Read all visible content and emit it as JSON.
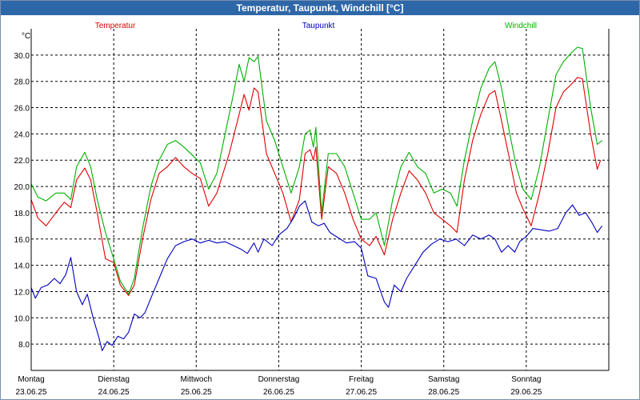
{
  "window": {
    "title": "Temperatur, Taupunkt, Windchill [°C]"
  },
  "chart_data": {
    "type": "line",
    "title": "Temperatur, Taupunkt, Windchill [°C]",
    "ylabel": "°C",
    "ylim": [
      6.0,
      32.0
    ],
    "yticks": [
      "8.0",
      "10.0",
      "12.0",
      "14.0",
      "16.0",
      "18.0",
      "20.0",
      "22.0",
      "24.0",
      "26.0",
      "28.0",
      "30.0"
    ],
    "xlim": [
      0,
      7
    ],
    "days": [
      {
        "name": "Montag",
        "date": "23.06.25"
      },
      {
        "name": "Dienstag",
        "date": "24.06.25"
      },
      {
        "name": "Mittwoch",
        "date": "25.06.25"
      },
      {
        "name": "Donnerstag",
        "date": "26.06.25"
      },
      {
        "name": "Freitag",
        "date": "27.06.25"
      },
      {
        "name": "Samstag",
        "date": "28.06.25"
      },
      {
        "name": "Sonntag",
        "date": "29.06.25"
      }
    ],
    "grid": true,
    "legend": "top",
    "series": [
      {
        "name": "Temperatur",
        "color": "#e00000",
        "points": [
          [
            0.0,
            19.0
          ],
          [
            0.08,
            17.6
          ],
          [
            0.18,
            17.0
          ],
          [
            0.3,
            18.0
          ],
          [
            0.4,
            18.8
          ],
          [
            0.48,
            18.4
          ],
          [
            0.55,
            20.5
          ],
          [
            0.65,
            21.4
          ],
          [
            0.72,
            20.5
          ],
          [
            0.8,
            18.0
          ],
          [
            0.9,
            14.5
          ],
          [
            1.0,
            14.2
          ],
          [
            1.08,
            12.5
          ],
          [
            1.18,
            11.7
          ],
          [
            1.25,
            12.5
          ],
          [
            1.35,
            16.0
          ],
          [
            1.45,
            19.0
          ],
          [
            1.55,
            21.0
          ],
          [
            1.65,
            21.5
          ],
          [
            1.75,
            22.2
          ],
          [
            1.85,
            21.5
          ],
          [
            1.95,
            21.0
          ],
          [
            2.05,
            20.6
          ],
          [
            2.15,
            18.5
          ],
          [
            2.25,
            19.5
          ],
          [
            2.4,
            22.5
          ],
          [
            2.5,
            25.0
          ],
          [
            2.58,
            27.0
          ],
          [
            2.64,
            25.8
          ],
          [
            2.7,
            27.5
          ],
          [
            2.75,
            27.2
          ],
          [
            2.85,
            22.5
          ],
          [
            2.95,
            21.0
          ],
          [
            3.05,
            19.5
          ],
          [
            3.15,
            17.3
          ],
          [
            3.25,
            19.0
          ],
          [
            3.32,
            22.5
          ],
          [
            3.38,
            22.8
          ],
          [
            3.42,
            22.0
          ],
          [
            3.45,
            23.0
          ],
          [
            3.52,
            17.5
          ],
          [
            3.6,
            21.5
          ],
          [
            3.7,
            21.0
          ],
          [
            3.8,
            19.5
          ],
          [
            3.9,
            17.5
          ],
          [
            4.0,
            16.0
          ],
          [
            4.1,
            15.5
          ],
          [
            4.18,
            16.2
          ],
          [
            4.28,
            14.8
          ],
          [
            4.38,
            17.5
          ],
          [
            4.48,
            19.5
          ],
          [
            4.58,
            21.2
          ],
          [
            4.68,
            20.5
          ],
          [
            4.78,
            19.5
          ],
          [
            4.88,
            18.0
          ],
          [
            4.98,
            17.5
          ],
          [
            5.08,
            17.0
          ],
          [
            5.16,
            16.5
          ],
          [
            5.25,
            20.5
          ],
          [
            5.35,
            23.5
          ],
          [
            5.45,
            25.5
          ],
          [
            5.55,
            27.0
          ],
          [
            5.62,
            27.3
          ],
          [
            5.7,
            25.0
          ],
          [
            5.8,
            22.0
          ],
          [
            5.88,
            19.5
          ],
          [
            5.96,
            18.3
          ],
          [
            6.06,
            17.0
          ],
          [
            6.16,
            19.5
          ],
          [
            6.26,
            22.5
          ],
          [
            6.36,
            26.0
          ],
          [
            6.45,
            27.2
          ],
          [
            6.55,
            27.8
          ],
          [
            6.62,
            28.3
          ],
          [
            6.68,
            28.2
          ],
          [
            6.78,
            24.0
          ],
          [
            6.86,
            21.3
          ],
          [
            6.9,
            22.0
          ]
        ]
      },
      {
        "name": "Taupunkt",
        "color": "#0000c0",
        "points": [
          [
            0.0,
            12.3
          ],
          [
            0.05,
            11.5
          ],
          [
            0.12,
            12.3
          ],
          [
            0.2,
            12.5
          ],
          [
            0.28,
            13.0
          ],
          [
            0.35,
            12.6
          ],
          [
            0.42,
            13.3
          ],
          [
            0.48,
            14.6
          ],
          [
            0.55,
            12.0
          ],
          [
            0.62,
            11.0
          ],
          [
            0.68,
            11.8
          ],
          [
            0.75,
            10.0
          ],
          [
            0.82,
            8.5
          ],
          [
            0.86,
            7.5
          ],
          [
            0.92,
            8.2
          ],
          [
            0.98,
            7.9
          ],
          [
            1.05,
            8.6
          ],
          [
            1.12,
            8.4
          ],
          [
            1.18,
            8.9
          ],
          [
            1.25,
            10.3
          ],
          [
            1.32,
            10.0
          ],
          [
            1.38,
            10.4
          ],
          [
            1.45,
            11.5
          ],
          [
            1.55,
            13.0
          ],
          [
            1.65,
            14.5
          ],
          [
            1.75,
            15.5
          ],
          [
            1.85,
            15.8
          ],
          [
            1.95,
            16.0
          ],
          [
            2.05,
            15.7
          ],
          [
            2.15,
            15.9
          ],
          [
            2.25,
            15.7
          ],
          [
            2.35,
            15.8
          ],
          [
            2.45,
            15.5
          ],
          [
            2.55,
            15.2
          ],
          [
            2.62,
            14.9
          ],
          [
            2.7,
            15.7
          ],
          [
            2.75,
            15.0
          ],
          [
            2.82,
            16.0
          ],
          [
            2.92,
            15.5
          ],
          [
            3.0,
            16.3
          ],
          [
            3.1,
            16.8
          ],
          [
            3.18,
            17.6
          ],
          [
            3.25,
            18.5
          ],
          [
            3.32,
            18.9
          ],
          [
            3.4,
            17.3
          ],
          [
            3.48,
            17.0
          ],
          [
            3.55,
            17.2
          ],
          [
            3.62,
            16.5
          ],
          [
            3.72,
            16.1
          ],
          [
            3.82,
            15.7
          ],
          [
            3.92,
            15.8
          ],
          [
            4.0,
            15.3
          ],
          [
            4.08,
            13.2
          ],
          [
            4.18,
            13.0
          ],
          [
            4.28,
            11.2
          ],
          [
            4.33,
            10.8
          ],
          [
            4.4,
            12.5
          ],
          [
            4.48,
            12.0
          ],
          [
            4.55,
            13.0
          ],
          [
            4.65,
            14.0
          ],
          [
            4.75,
            15.0
          ],
          [
            4.85,
            15.6
          ],
          [
            4.95,
            16.0
          ],
          [
            5.05,
            15.8
          ],
          [
            5.15,
            16.0
          ],
          [
            5.25,
            15.5
          ],
          [
            5.35,
            16.3
          ],
          [
            5.45,
            16.0
          ],
          [
            5.55,
            16.3
          ],
          [
            5.62,
            16.0
          ],
          [
            5.7,
            15.0
          ],
          [
            5.78,
            15.5
          ],
          [
            5.86,
            15.0
          ],
          [
            5.92,
            15.8
          ],
          [
            6.0,
            16.2
          ],
          [
            6.08,
            16.8
          ],
          [
            6.18,
            16.7
          ],
          [
            6.28,
            16.6
          ],
          [
            6.38,
            16.8
          ],
          [
            6.48,
            18.0
          ],
          [
            6.56,
            18.6
          ],
          [
            6.64,
            17.8
          ],
          [
            6.72,
            18.0
          ],
          [
            6.8,
            17.2
          ],
          [
            6.86,
            16.5
          ],
          [
            6.92,
            17.0
          ]
        ]
      },
      {
        "name": "Windchill",
        "color": "#00b000",
        "points": [
          [
            0.0,
            20.2
          ],
          [
            0.08,
            19.2
          ],
          [
            0.18,
            18.9
          ],
          [
            0.3,
            19.5
          ],
          [
            0.4,
            19.5
          ],
          [
            0.48,
            19.0
          ],
          [
            0.55,
            21.5
          ],
          [
            0.65,
            22.6
          ],
          [
            0.72,
            21.5
          ],
          [
            0.8,
            19.0
          ],
          [
            0.9,
            16.5
          ],
          [
            1.0,
            14.5
          ],
          [
            1.08,
            12.8
          ],
          [
            1.18,
            11.8
          ],
          [
            1.25,
            13.0
          ],
          [
            1.35,
            16.8
          ],
          [
            1.45,
            20.0
          ],
          [
            1.55,
            22.0
          ],
          [
            1.65,
            23.2
          ],
          [
            1.75,
            23.5
          ],
          [
            1.85,
            23.0
          ],
          [
            1.95,
            22.4
          ],
          [
            2.05,
            21.8
          ],
          [
            2.15,
            19.8
          ],
          [
            2.25,
            21.0
          ],
          [
            2.35,
            24.0
          ],
          [
            2.45,
            27.0
          ],
          [
            2.52,
            29.3
          ],
          [
            2.58,
            28.0
          ],
          [
            2.64,
            29.8
          ],
          [
            2.7,
            29.5
          ],
          [
            2.75,
            29.9
          ],
          [
            2.85,
            25.0
          ],
          [
            2.95,
            23.5
          ],
          [
            3.05,
            21.5
          ],
          [
            3.15,
            19.5
          ],
          [
            3.25,
            21.5
          ],
          [
            3.32,
            24.0
          ],
          [
            3.38,
            24.3
          ],
          [
            3.42,
            23.0
          ],
          [
            3.45,
            24.5
          ],
          [
            3.52,
            18.0
          ],
          [
            3.6,
            22.5
          ],
          [
            3.7,
            22.5
          ],
          [
            3.8,
            21.5
          ],
          [
            3.9,
            19.5
          ],
          [
            4.0,
            17.5
          ],
          [
            4.1,
            17.5
          ],
          [
            4.18,
            18.0
          ],
          [
            4.28,
            15.5
          ],
          [
            4.38,
            19.0
          ],
          [
            4.48,
            21.5
          ],
          [
            4.58,
            22.6
          ],
          [
            4.68,
            21.5
          ],
          [
            4.78,
            21.0
          ],
          [
            4.88,
            19.5
          ],
          [
            4.98,
            19.8
          ],
          [
            5.08,
            19.5
          ],
          [
            5.16,
            18.5
          ],
          [
            5.25,
            22.0
          ],
          [
            5.35,
            25.0
          ],
          [
            5.45,
            27.5
          ],
          [
            5.55,
            29.0
          ],
          [
            5.62,
            29.5
          ],
          [
            5.7,
            27.5
          ],
          [
            5.8,
            24.0
          ],
          [
            5.88,
            21.5
          ],
          [
            5.96,
            19.8
          ],
          [
            6.06,
            19.0
          ],
          [
            6.16,
            21.5
          ],
          [
            6.26,
            25.0
          ],
          [
            6.36,
            28.5
          ],
          [
            6.45,
            29.5
          ],
          [
            6.55,
            30.2
          ],
          [
            6.62,
            30.6
          ],
          [
            6.68,
            30.5
          ],
          [
            6.78,
            26.0
          ],
          [
            6.86,
            23.2
          ],
          [
            6.92,
            23.5
          ]
        ]
      }
    ]
  }
}
